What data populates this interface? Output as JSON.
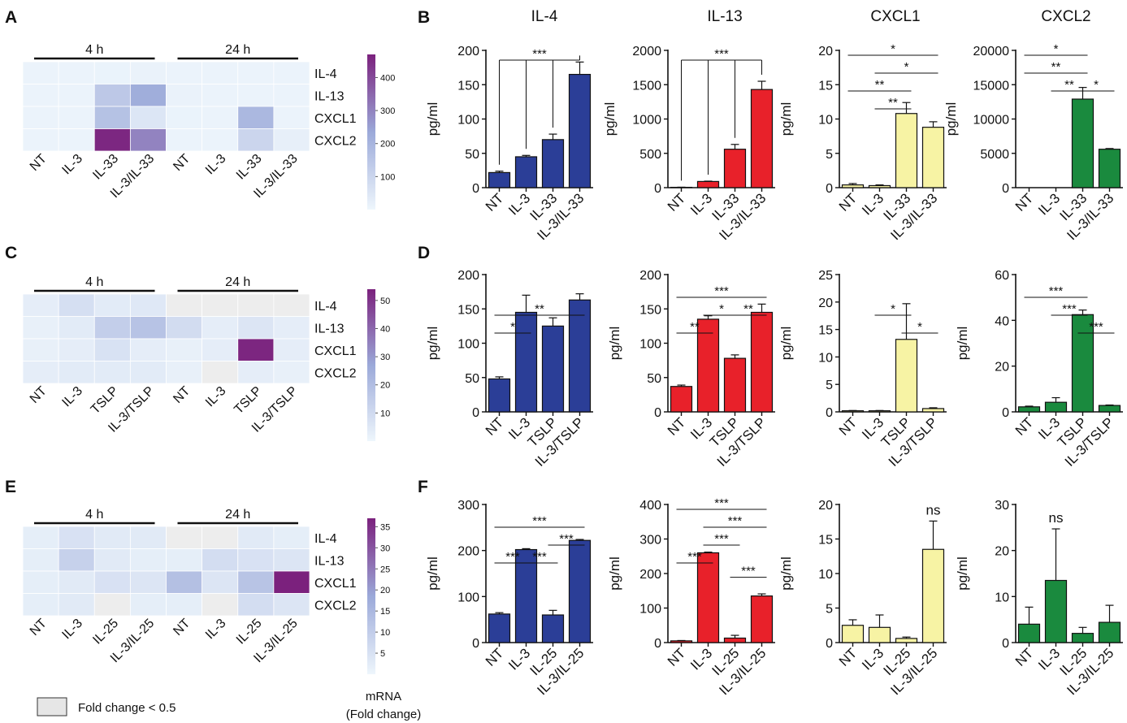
{
  "figure": {
    "panels": [
      "A",
      "B",
      "C",
      "D",
      "E",
      "F"
    ],
    "column_titles": [
      "IL-4",
      "IL-13",
      "CXCL1",
      "CXCL2"
    ],
    "legend_note": "Fold change < 0.5",
    "colorbar_title": [
      "mRNA",
      "(Fold change)"
    ],
    "colors": {
      "blue": "#2b3e97",
      "red": "#e8212a",
      "yellow": "#f7f3a4",
      "green": "#1a8a3e",
      "heat_low": "#eef6fc",
      "heat_mid": "#9ba9d9",
      "heat_high": "#7b217d",
      "gray": "#ededed"
    }
  },
  "chart_data": [
    {
      "panel": "A",
      "type": "heatmap",
      "time_labels": [
        "4 h",
        "24 h"
      ],
      "columns": [
        "NT",
        "IL-3",
        "IL-33",
        "IL-3/IL-33",
        "NT",
        "IL-3",
        "IL-33",
        "IL-3/IL-33"
      ],
      "rows": [
        "IL-4",
        "IL-13",
        "CXCL1",
        "CXCL2"
      ],
      "values": [
        [
          8,
          8,
          10,
          12,
          8,
          8,
          8,
          8
        ],
        [
          8,
          8,
          140,
          220,
          12,
          8,
          8,
          8
        ],
        [
          8,
          8,
          160,
          50,
          10,
          8,
          190,
          8
        ],
        [
          8,
          8,
          460,
          300,
          8,
          8,
          100,
          20
        ]
      ],
      "colorbar": {
        "max": 470,
        "ticks": [
          100,
          200,
          300,
          400
        ]
      }
    },
    {
      "panel": "C",
      "type": "heatmap",
      "time_labels": [
        "4 h",
        "24 h"
      ],
      "columns": [
        "NT",
        "IL-3",
        "TSLP",
        "IL-3/TSLP",
        "NT",
        "IL-3",
        "TSLP",
        "IL-3/TSLP"
      ],
      "rows": [
        "IL-4",
        "IL-13",
        "CXCL1",
        "CXCL2"
      ],
      "values": [
        [
          3,
          8,
          4,
          5,
          null,
          null,
          null,
          null
        ],
        [
          2,
          4,
          14,
          18,
          9,
          3,
          6,
          3
        ],
        [
          2,
          3,
          7,
          3,
          2,
          3,
          53,
          3
        ],
        [
          3,
          4,
          4,
          4,
          2,
          null,
          3,
          2
        ]
      ],
      "colorbar": {
        "max": 54,
        "ticks": [
          10,
          20,
          30,
          40,
          50
        ]
      }
    },
    {
      "panel": "E",
      "type": "heatmap",
      "time_labels": [
        "4 h",
        "24 h"
      ],
      "columns": [
        "NT",
        "IL-3",
        "IL-25",
        "IL-3/IL-25",
        "NT",
        "IL-3",
        "IL-25",
        "IL-3/IL-25"
      ],
      "rows": [
        "IL-4",
        "IL-13",
        "CXCL1",
        "CXCL2"
      ],
      "values": [
        [
          2,
          5,
          3,
          3,
          null,
          null,
          3,
          2
        ],
        [
          2,
          9,
          3,
          2,
          2,
          6,
          5,
          4
        ],
        [
          2,
          3,
          5,
          4,
          13,
          4,
          12,
          37
        ],
        [
          2,
          3,
          null,
          2,
          2,
          null,
          6,
          4
        ]
      ],
      "colorbar": {
        "max": 37,
        "ticks": [
          5,
          10,
          15,
          20,
          25,
          30,
          35
        ]
      }
    },
    {
      "panel": "B",
      "title": "IL-4",
      "type": "bar",
      "color": "blue",
      "categories": [
        "NT",
        "IL-3",
        "IL-33",
        "IL-3/IL-33"
      ],
      "values": [
        22,
        45,
        70,
        165
      ],
      "errors": [
        2,
        2,
        8,
        18
      ],
      "ylabel": "pg/ml",
      "ylim": [
        0,
        200
      ],
      "yticks": [
        "0",
        "50",
        "100",
        "150",
        "200"
      ],
      "sig": [
        {
          "label": "***",
          "style": "bracket",
          "from": 0,
          "targets": [
            1,
            2,
            3
          ],
          "level": 0
        }
      ]
    },
    {
      "panel": "B",
      "title": "IL-13",
      "type": "bar",
      "color": "red",
      "categories": [
        "NT",
        "IL-3",
        "IL-33",
        "IL-3/IL-33"
      ],
      "values": [
        5,
        90,
        560,
        1430
      ],
      "errors": [
        2,
        5,
        70,
        120
      ],
      "ylabel": "pg/ml",
      "ylim": [
        0,
        2000
      ],
      "yticks": [
        "0",
        "500",
        "1000",
        "1500",
        "2000"
      ],
      "sig": [
        {
          "label": "***",
          "style": "bracket",
          "from": 0,
          "targets": [
            1,
            2,
            3
          ],
          "level": 0
        }
      ]
    },
    {
      "panel": "B",
      "title": "CXCL1",
      "type": "bar",
      "color": "yellow",
      "categories": [
        "NT",
        "IL-3",
        "IL-33",
        "IL-3/IL-33"
      ],
      "values": [
        0.4,
        0.3,
        10.8,
        8.8
      ],
      "errors": [
        0.2,
        0.1,
        1.6,
        0.8
      ],
      "ylabel": "pg/ml",
      "ylim": [
        0,
        20
      ],
      "yticks": [
        "0",
        "5",
        "10",
        "15",
        "20"
      ],
      "sig": [
        {
          "label": "*",
          "from": 0,
          "to": 3,
          "level": 4
        },
        {
          "label": "*",
          "from": 1,
          "to": 3,
          "level": 3
        },
        {
          "label": "**",
          "from": 0,
          "to": 2,
          "level": 2
        },
        {
          "label": "**",
          "from": 1,
          "to": 2,
          "level": 1
        }
      ]
    },
    {
      "panel": "B",
      "title": "CXCL2",
      "type": "bar",
      "color": "green",
      "categories": [
        "NT",
        "IL-3",
        "IL-33",
        "IL-3/IL-33"
      ],
      "values": [
        0,
        0,
        12900,
        5600
      ],
      "errors": [
        0,
        0,
        1700,
        100
      ],
      "ylabel": "pg/ml",
      "ylim": [
        0,
        20000
      ],
      "yticks": [
        "0",
        "5000",
        "10000",
        "15000",
        "20000"
      ],
      "sig": [
        {
          "label": "*",
          "from": 0,
          "to": 2,
          "level": 4
        },
        {
          "label": "**",
          "from": 0,
          "to": 2,
          "level": 3
        },
        {
          "label": "**",
          "from": 1,
          "to": 2,
          "level": 2
        },
        {
          "label": "*",
          "from": 2,
          "to": 3,
          "level": 2
        }
      ]
    },
    {
      "panel": "D",
      "type": "bar",
      "color": "blue",
      "categories": [
        "NT",
        "IL-3",
        "TSLP",
        "IL-3/TSLP"
      ],
      "values": [
        48,
        145,
        125,
        163
      ],
      "errors": [
        3,
        25,
        12,
        9
      ],
      "ylabel": "pg/ml",
      "ylim": [
        0,
        200
      ],
      "yticks": [
        "0",
        "50",
        "100",
        "150",
        "200"
      ],
      "sig": [
        {
          "label": "**",
          "from": 0,
          "to": 3,
          "level": 2
        },
        {
          "label": "*",
          "from": 0,
          "to": 1,
          "level": 1
        }
      ]
    },
    {
      "panel": "D",
      "type": "bar",
      "color": "red",
      "categories": [
        "NT",
        "IL-3",
        "TSLP",
        "IL-3/TSLP"
      ],
      "values": [
        37,
        135,
        78,
        145
      ],
      "errors": [
        2,
        5,
        5,
        12
      ],
      "ylabel": "pg/ml",
      "ylim": [
        0,
        200
      ],
      "yticks": [
        "0",
        "50",
        "100",
        "150",
        "200"
      ],
      "sig": [
        {
          "label": "***",
          "from": 0,
          "to": 3,
          "level": 3
        },
        {
          "label": "*",
          "from": 1,
          "to": 2,
          "level": 2
        },
        {
          "label": "**",
          "from": 2,
          "to": 3,
          "level": 2
        },
        {
          "label": "**",
          "from": 0,
          "to": 1,
          "level": 1
        }
      ]
    },
    {
      "panel": "D",
      "type": "bar",
      "color": "yellow",
      "categories": [
        "NT",
        "IL-3",
        "TSLP",
        "IL-3/TSLP"
      ],
      "values": [
        0.2,
        0.2,
        13.2,
        0.6
      ],
      "errors": [
        0.05,
        0.05,
        6.5,
        0.15
      ],
      "ylabel": "pg/ml",
      "ylim": [
        0,
        25
      ],
      "yticks": [
        "0",
        "5",
        "10",
        "15",
        "20",
        "25"
      ],
      "sig": [
        {
          "label": "*",
          "from": 1,
          "to": 2,
          "level": 2
        },
        {
          "label": "*",
          "from": 2,
          "to": 3,
          "level": 1
        }
      ]
    },
    {
      "panel": "D",
      "type": "bar",
      "color": "green",
      "categories": [
        "NT",
        "IL-3",
        "TSLP",
        "IL-3/TSLP"
      ],
      "values": [
        2.2,
        4.2,
        42.5,
        2.8
      ],
      "errors": [
        0.3,
        2,
        2,
        0.2
      ],
      "ylabel": "pg/ml",
      "ylim": [
        0,
        60
      ],
      "yticks": [
        "0",
        "20",
        "40",
        "60"
      ],
      "sig": [
        {
          "label": "***",
          "from": 0,
          "to": 2,
          "level": 3
        },
        {
          "label": "***",
          "from": 1,
          "to": 2,
          "level": 2
        },
        {
          "label": "***",
          "from": 2,
          "to": 3,
          "level": 1
        }
      ]
    },
    {
      "panel": "F",
      "type": "bar",
      "color": "blue",
      "categories": [
        "NT",
        "IL-3",
        "IL-25",
        "IL-3/IL-25"
      ],
      "values": [
        62,
        202,
        60,
        222
      ],
      "errors": [
        3,
        2,
        10,
        2
      ],
      "ylabel": "pg/ml",
      "ylim": [
        0,
        300
      ],
      "yticks": [
        "0",
        "100",
        "200",
        "300"
      ],
      "sig": [
        {
          "label": "***",
          "from": 0,
          "to": 3,
          "level": 3
        },
        {
          "label": "***",
          "from": 2,
          "to": 3,
          "level": 2
        },
        {
          "label": "***",
          "from": 1,
          "to": 2,
          "level": 1
        },
        {
          "label": "***",
          "from": 0,
          "to": 1,
          "level": 1
        }
      ]
    },
    {
      "panel": "F",
      "type": "bar",
      "color": "red",
      "categories": [
        "NT",
        "IL-3",
        "IL-25",
        "IL-3/IL-25"
      ],
      "values": [
        5,
        260,
        13,
        135
      ],
      "errors": [
        1,
        2,
        8,
        6
      ],
      "ylabel": "pg/ml",
      "ylim": [
        0,
        400
      ],
      "yticks": [
        "0",
        "100",
        "200",
        "300",
        "400"
      ],
      "sig": [
        {
          "label": "***",
          "from": 0,
          "to": 3,
          "level": 4
        },
        {
          "label": "***",
          "from": 1,
          "to": 3,
          "level": 3
        },
        {
          "label": "***",
          "from": 1,
          "to": 2,
          "level": 2
        },
        {
          "label": "***",
          "from": 0,
          "to": 1,
          "level": 1
        },
        {
          "label": "***",
          "from": 2,
          "to": 3,
          "level": 0.2
        }
      ]
    },
    {
      "panel": "F",
      "type": "bar",
      "color": "yellow",
      "categories": [
        "NT",
        "IL-3",
        "IL-25",
        "IL-3/IL-25"
      ],
      "values": [
        2.5,
        2.2,
        0.6,
        13.5
      ],
      "errors": [
        0.8,
        1.8,
        0.2,
        4.1
      ],
      "ylabel": "pg/ml",
      "ylim": [
        0,
        20
      ],
      "yticks": [
        "0",
        "5",
        "10",
        "15",
        "20"
      ],
      "sig": [
        {
          "label": "ns",
          "style": "text",
          "at": 3
        }
      ]
    },
    {
      "panel": "F",
      "type": "bar",
      "color": "green",
      "categories": [
        "NT",
        "IL-3",
        "IL-25",
        "IL-3/IL-25"
      ],
      "values": [
        4,
        13.5,
        2,
        4.4
      ],
      "errors": [
        3.7,
        11.2,
        1.3,
        3.7
      ],
      "ylabel": "pg/ml",
      "ylim": [
        0,
        30
      ],
      "yticks": [
        "0",
        "10",
        "20",
        "30"
      ],
      "sig": [
        {
          "label": "ns",
          "style": "text",
          "at": 1
        }
      ]
    }
  ]
}
